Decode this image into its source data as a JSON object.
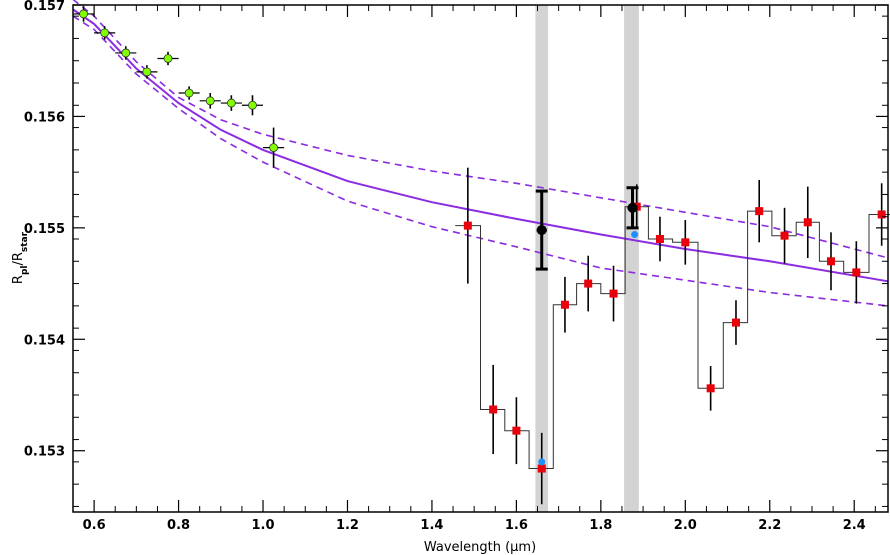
{
  "chart_data": {
    "type": "scatter",
    "xlabel": "Wavelength (μm)",
    "ylabel": "R_pl/R_star",
    "ylabel_main": "R",
    "ylabel_sub1": "pl",
    "ylabel_slash": "/R",
    "ylabel_sub2": "star",
    "xlim": [
      0.55,
      2.48
    ],
    "ylim": [
      0.15245,
      0.157
    ],
    "x_ticks": [
      0.6,
      0.8,
      1.0,
      1.2,
      1.4,
      1.6,
      1.8,
      2.0,
      2.2,
      2.4
    ],
    "x_tick_labels": [
      "0.6",
      "0.8",
      "1.0",
      "1.2",
      "1.4",
      "1.6",
      "1.8",
      "2.0",
      "2.2",
      "2.4"
    ],
    "y_ticks": [
      0.153,
      0.154,
      0.155,
      0.156,
      0.157
    ],
    "y_tick_labels": [
      "0.153",
      "0.154",
      "0.155",
      "0.156",
      "0.157"
    ],
    "grid": false,
    "highlight_bands": [
      {
        "x0": 1.645,
        "x1": 1.675,
        "color": "#d3d3d3"
      },
      {
        "x0": 1.855,
        "x1": 1.89,
        "color": "#d3d3d3"
      }
    ],
    "model_curve": {
      "color": "#8b2be2",
      "x": [
        0.55,
        0.6,
        0.7,
        0.8,
        0.9,
        1.0,
        1.2,
        1.4,
        1.6,
        1.8,
        2.0,
        2.2,
        2.48
      ],
      "y": [
        0.15696,
        0.15683,
        0.15643,
        0.15612,
        0.15588,
        0.1557,
        0.15542,
        0.15523,
        0.15508,
        0.15494,
        0.15481,
        0.1547,
        0.15452
      ],
      "upper": [
        0.15705,
        0.1569,
        0.15649,
        0.15617,
        0.15597,
        0.15584,
        0.15565,
        0.15551,
        0.1554,
        0.15527,
        0.15514,
        0.15501,
        0.15473
      ],
      "lower": [
        0.1569,
        0.15678,
        0.15638,
        0.15607,
        0.1558,
        0.15559,
        0.15524,
        0.15501,
        0.15483,
        0.15464,
        0.15453,
        0.15442,
        0.1543
      ]
    },
    "series": [
      {
        "color": "#7fff00",
        "marker": "circle",
        "x": [
          0.575,
          0.625,
          0.675,
          0.725,
          0.775,
          0.825,
          0.875,
          0.925,
          0.975,
          1.025
        ],
        "y": [
          0.15692,
          0.15675,
          0.15657,
          0.1564,
          0.15652,
          0.15621,
          0.15614,
          0.15612,
          0.1561,
          0.15572
        ],
        "yerr": [
          7e-05,
          6e-05,
          6e-05,
          6e-05,
          6e-05,
          6e-05,
          7e-05,
          7e-05,
          9e-05,
          0.00018
        ],
        "xerr": 0.025
      },
      {
        "color": "#e8000b",
        "marker": "square",
        "x": [
          1.485,
          1.545,
          1.6,
          1.66,
          1.715,
          1.77,
          1.83,
          1.885,
          1.94,
          2.0,
          2.06,
          2.12,
          2.175,
          2.235,
          2.29,
          2.345,
          2.405,
          2.465
        ],
        "y": [
          0.15502,
          0.15337,
          0.15318,
          0.15284,
          0.15431,
          0.1545,
          0.15441,
          0.15519,
          0.1549,
          0.15487,
          0.15356,
          0.15415,
          0.15515,
          0.15493,
          0.15505,
          0.1547,
          0.1546,
          0.15512
        ],
        "yerr": [
          0.00052,
          0.0004,
          0.0003,
          0.00032,
          0.00025,
          0.00025,
          0.00025,
          0.0002,
          0.0002,
          0.0002,
          0.0002,
          0.0002,
          0.00028,
          0.00025,
          0.00032,
          0.00026,
          0.00028,
          0.00028
        ]
      },
      {
        "color": "#1e90ff",
        "marker": "circle",
        "x": [
          1.66,
          1.88
        ],
        "y": [
          0.1529,
          0.15494
        ]
      },
      {
        "color": "#000000",
        "marker": "circle",
        "x": [
          1.66,
          1.875
        ],
        "y": [
          0.15498,
          0.15518
        ],
        "yerr": [
          0.00035,
          0.00018
        ],
        "xerr": 0.012
      }
    ]
  }
}
